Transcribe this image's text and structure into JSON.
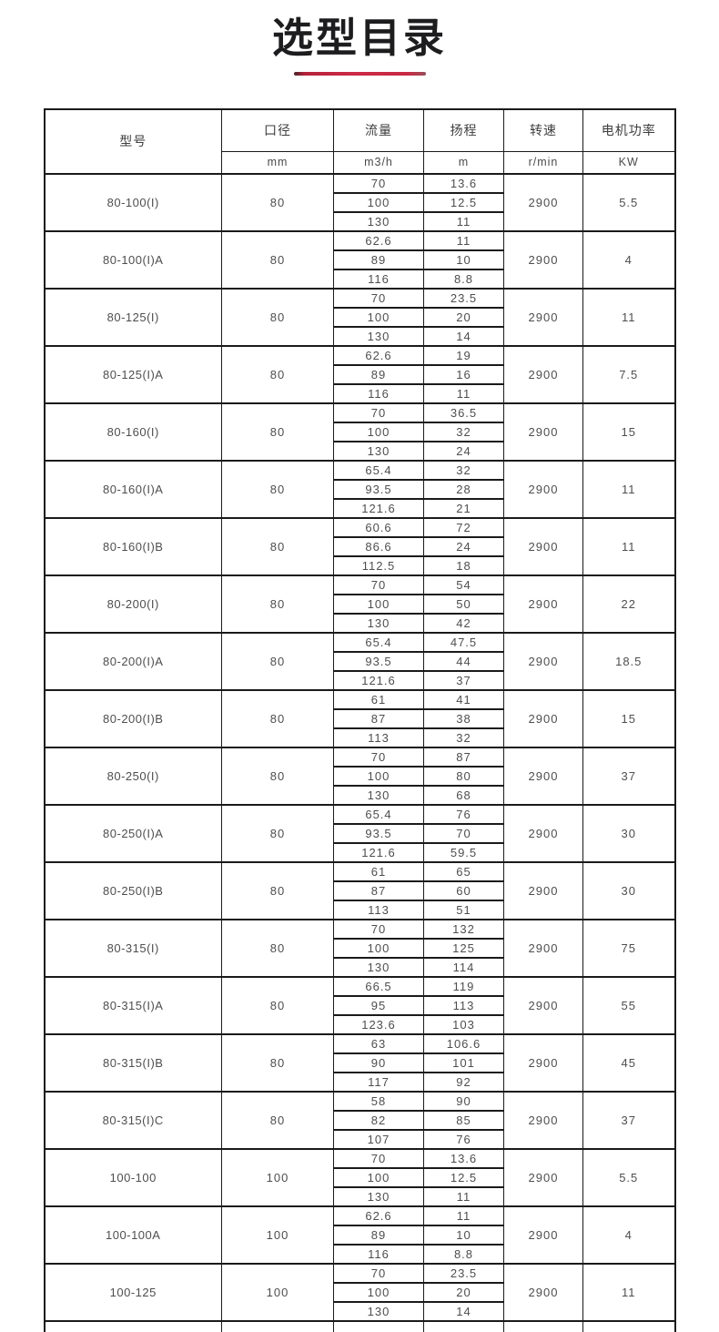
{
  "page": {
    "title": "选型目录",
    "accent_color": "#c82943"
  },
  "table": {
    "headers": {
      "model": "型号",
      "diameter": "口径",
      "flow": "流量",
      "head": "扬程",
      "speed": "转速",
      "power": "电机功率"
    },
    "units": {
      "diameter": "mm",
      "flow": "m3/h",
      "head": "m",
      "speed": "r/min",
      "power": "KW"
    },
    "rows": [
      {
        "model": "80-100(I)",
        "diameter": "80",
        "points": [
          [
            "70",
            "13.6"
          ],
          [
            "100",
            "12.5"
          ],
          [
            "130",
            "11"
          ]
        ],
        "speed": "2900",
        "power": "5.5"
      },
      {
        "model": "80-100(I)A",
        "diameter": "80",
        "points": [
          [
            "62.6",
            "11"
          ],
          [
            "89",
            "10"
          ],
          [
            "116",
            "8.8"
          ]
        ],
        "speed": "2900",
        "power": "4"
      },
      {
        "model": "80-125(I)",
        "diameter": "80",
        "points": [
          [
            "70",
            "23.5"
          ],
          [
            "100",
            "20"
          ],
          [
            "130",
            "14"
          ]
        ],
        "speed": "2900",
        "power": "11"
      },
      {
        "model": "80-125(I)A",
        "diameter": "80",
        "points": [
          [
            "62.6",
            "19"
          ],
          [
            "89",
            "16"
          ],
          [
            "116",
            "11"
          ]
        ],
        "speed": "2900",
        "power": "7.5"
      },
      {
        "model": "80-160(I)",
        "diameter": "80",
        "points": [
          [
            "70",
            "36.5"
          ],
          [
            "100",
            "32"
          ],
          [
            "130",
            "24"
          ]
        ],
        "speed": "2900",
        "power": "15"
      },
      {
        "model": "80-160(I)A",
        "diameter": "80",
        "points": [
          [
            "65.4",
            "32"
          ],
          [
            "93.5",
            "28"
          ],
          [
            "121.6",
            "21"
          ]
        ],
        "speed": "2900",
        "power": "11"
      },
      {
        "model": "80-160(I)B",
        "diameter": "80",
        "points": [
          [
            "60.6",
            "72"
          ],
          [
            "86.6",
            "24"
          ],
          [
            "112.5",
            "18"
          ]
        ],
        "speed": "2900",
        "power": "11"
      },
      {
        "model": "80-200(I)",
        "diameter": "80",
        "points": [
          [
            "70",
            "54"
          ],
          [
            "100",
            "50"
          ],
          [
            "130",
            "42"
          ]
        ],
        "speed": "2900",
        "power": "22"
      },
      {
        "model": "80-200(I)A",
        "diameter": "80",
        "points": [
          [
            "65.4",
            "47.5"
          ],
          [
            "93.5",
            "44"
          ],
          [
            "121.6",
            "37"
          ]
        ],
        "speed": "2900",
        "power": "18.5"
      },
      {
        "model": "80-200(I)B",
        "diameter": "80",
        "points": [
          [
            "61",
            "41"
          ],
          [
            "87",
            "38"
          ],
          [
            "113",
            "32"
          ]
        ],
        "speed": "2900",
        "power": "15"
      },
      {
        "model": "80-250(I)",
        "diameter": "80",
        "points": [
          [
            "70",
            "87"
          ],
          [
            "100",
            "80"
          ],
          [
            "130",
            "68"
          ]
        ],
        "speed": "2900",
        "power": "37"
      },
      {
        "model": "80-250(I)A",
        "diameter": "80",
        "points": [
          [
            "65.4",
            "76"
          ],
          [
            "93.5",
            "70"
          ],
          [
            "121.6",
            "59.5"
          ]
        ],
        "speed": "2900",
        "power": "30"
      },
      {
        "model": "80-250(I)B",
        "diameter": "80",
        "points": [
          [
            "61",
            "65"
          ],
          [
            "87",
            "60"
          ],
          [
            "113",
            "51"
          ]
        ],
        "speed": "2900",
        "power": "30"
      },
      {
        "model": "80-315(I)",
        "diameter": "80",
        "points": [
          [
            "70",
            "132"
          ],
          [
            "100",
            "125"
          ],
          [
            "130",
            "114"
          ]
        ],
        "speed": "2900",
        "power": "75"
      },
      {
        "model": "80-315(I)A",
        "diameter": "80",
        "points": [
          [
            "66.5",
            "119"
          ],
          [
            "95",
            "113"
          ],
          [
            "123.6",
            "103"
          ]
        ],
        "speed": "2900",
        "power": "55"
      },
      {
        "model": "80-315(I)B",
        "diameter": "80",
        "points": [
          [
            "63",
            "106.6"
          ],
          [
            "90",
            "101"
          ],
          [
            "117",
            "92"
          ]
        ],
        "speed": "2900",
        "power": "45"
      },
      {
        "model": "80-315(I)C",
        "diameter": "80",
        "points": [
          [
            "58",
            "90"
          ],
          [
            "82",
            "85"
          ],
          [
            "107",
            "76"
          ]
        ],
        "speed": "2900",
        "power": "37"
      },
      {
        "model": "100-100",
        "diameter": "100",
        "points": [
          [
            "70",
            "13.6"
          ],
          [
            "100",
            "12.5"
          ],
          [
            "130",
            "11"
          ]
        ],
        "speed": "2900",
        "power": "5.5"
      },
      {
        "model": "100-100A",
        "diameter": "100",
        "points": [
          [
            "62.6",
            "11"
          ],
          [
            "89",
            "10"
          ],
          [
            "116",
            "8.8"
          ]
        ],
        "speed": "2900",
        "power": "4"
      },
      {
        "model": "100-125",
        "diameter": "100",
        "points": [
          [
            "70",
            "23.5"
          ],
          [
            "100",
            "20"
          ],
          [
            "130",
            "14"
          ]
        ],
        "speed": "2900",
        "power": "11"
      }
    ]
  }
}
